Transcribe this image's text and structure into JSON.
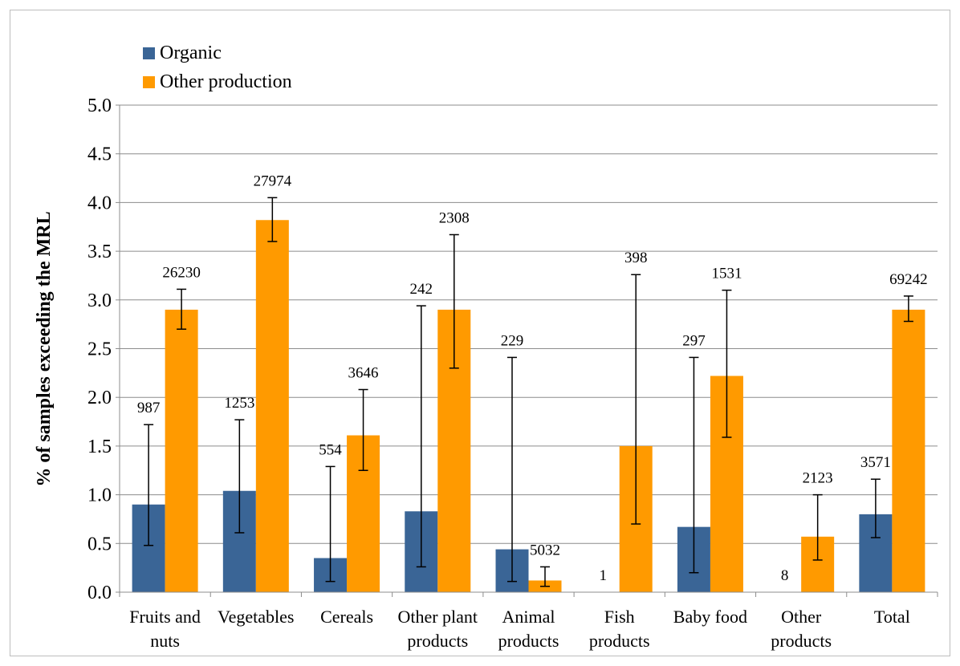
{
  "chart_data": {
    "type": "bar",
    "title": "",
    "ylabel": "% of samples exceeding the MRL",
    "xlabel": "",
    "ylim": [
      0,
      5
    ],
    "ytick_step": 0.5,
    "grid": true,
    "legend_position": "top-left",
    "categories": [
      [
        "Fruits and",
        "nuts"
      ],
      [
        "Vegetables"
      ],
      [
        "Cereals"
      ],
      [
        "Other plant",
        "products"
      ],
      [
        "Animal",
        "products"
      ],
      [
        "Fish",
        "products"
      ],
      [
        "Baby food"
      ],
      [
        "Other",
        "products"
      ],
      [
        "Total"
      ]
    ],
    "series": [
      {
        "name": "Organic",
        "color": "#3a6596",
        "values": [
          0.9,
          1.04,
          0.35,
          0.83,
          0.44,
          0,
          0.67,
          0,
          0.8
        ],
        "err_low": [
          0.48,
          0.61,
          0.11,
          0.26,
          0.11,
          null,
          0.2,
          null,
          0.56
        ],
        "err_high": [
          1.72,
          1.77,
          1.29,
          2.94,
          2.41,
          null,
          2.41,
          null,
          1.16
        ],
        "labels": [
          "987",
          "1253",
          "554",
          "242",
          "229",
          "1",
          "297",
          "8",
          "3571"
        ]
      },
      {
        "name": "Other production",
        "color": "#ff9a00",
        "values": [
          2.9,
          3.82,
          1.61,
          2.9,
          0.12,
          1.5,
          2.22,
          0.57,
          2.9
        ],
        "err_low": [
          2.7,
          3.6,
          1.25,
          2.3,
          0.06,
          0.7,
          1.59,
          0.33,
          2.78
        ],
        "err_high": [
          3.11,
          4.05,
          2.08,
          3.67,
          0.26,
          3.26,
          3.1,
          1.0,
          3.04
        ],
        "labels": [
          "26230",
          "27974",
          "3646",
          "2308",
          "5032",
          "398",
          "1531",
          "2123",
          "69242"
        ]
      }
    ]
  }
}
